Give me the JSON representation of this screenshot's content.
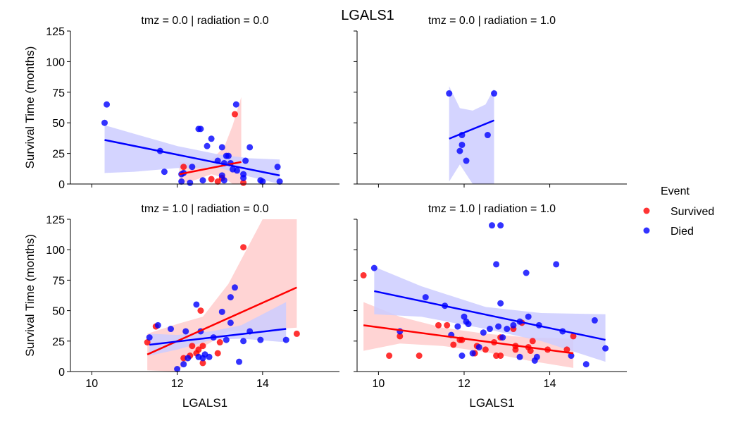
{
  "title": "LGALS1",
  "legend": {
    "title": "Event",
    "entries": [
      {
        "label": "Survived",
        "color": "#ff0000"
      },
      {
        "label": "Died",
        "color": "#0000ff"
      }
    ],
    "placement": "right"
  },
  "colors": {
    "survived": "#ff0000",
    "died": "#0000ff",
    "survived_band": "#ffcccc",
    "died_band": "#ccccff"
  },
  "chart_data": [
    {
      "type": "scatter",
      "panel_title": "tmz = 0.0 | radiation = 0.0",
      "xlabel": "",
      "ylabel": "Survival Time (months)",
      "xlim": [
        9.5,
        15.8
      ],
      "ylim": [
        0,
        125
      ],
      "xticks": [
        10,
        12,
        14
      ],
      "yticks": [
        0,
        25,
        50,
        75,
        100,
        125
      ],
      "series": [
        {
          "name": "Survived",
          "color": "#ff0000",
          "points": [
            [
              12.15,
              14
            ],
            [
              12.8,
              4
            ],
            [
              12.95,
              2
            ],
            [
              13.05,
              5
            ],
            [
              13.35,
              57
            ],
            [
              13.55,
              1
            ]
          ],
          "fit": {
            "x": [
              12.05,
              13.5
            ],
            "y": [
              8,
              18
            ]
          },
          "band": {
            "x": [
              12.05,
              12.4,
              12.8,
              13.1,
              13.3,
              13.5
            ],
            "upper": [
              18,
              17,
              20,
              30,
              48,
              71
            ],
            "lower": [
              0,
              3,
              8,
              5,
              0,
              0
            ]
          }
        },
        {
          "name": "Died",
          "color": "#0000ff",
          "points": [
            [
              10.3,
              50
            ],
            [
              10.35,
              65
            ],
            [
              11.6,
              27
            ],
            [
              11.7,
              10
            ],
            [
              12.1,
              8
            ],
            [
              12.1,
              2
            ],
            [
              12.15,
              9
            ],
            [
              12.3,
              1
            ],
            [
              12.35,
              14
            ],
            [
              12.5,
              45
            ],
            [
              12.55,
              45
            ],
            [
              12.6,
              3
            ],
            [
              12.7,
              31
            ],
            [
              12.8,
              37
            ],
            [
              12.95,
              19
            ],
            [
              13.05,
              30
            ],
            [
              13.05,
              7
            ],
            [
              13.1,
              17
            ],
            [
              13.1,
              3
            ],
            [
              13.15,
              23
            ],
            [
              13.2,
              23
            ],
            [
              13.25,
              17
            ],
            [
              13.3,
              12
            ],
            [
              13.38,
              65
            ],
            [
              13.4,
              11
            ],
            [
              13.55,
              5
            ],
            [
              13.55,
              8
            ],
            [
              13.6,
              19
            ],
            [
              13.7,
              30
            ],
            [
              13.95,
              3
            ],
            [
              14.0,
              2
            ],
            [
              14.35,
              14
            ],
            [
              14.4,
              2
            ]
          ],
          "fit": {
            "x": [
              10.3,
              14.4
            ],
            "y": [
              36,
              7
            ]
          },
          "band": {
            "x": [
              10.3,
              11.0,
              12.0,
              13.0,
              13.7,
              14.4
            ],
            "upper": [
              48,
              41,
              31,
              24,
              21,
              20
            ],
            "lower": [
              9,
              10,
              13,
              13,
              6,
              -5
            ]
          }
        }
      ]
    },
    {
      "type": "scatter",
      "panel_title": "tmz = 0.0 | radiation = 1.0",
      "xlabel": "",
      "ylabel": "",
      "xlim": [
        9.5,
        15.8
      ],
      "ylim": [
        0,
        125
      ],
      "xticks": [
        10,
        12,
        14
      ],
      "yticks": [
        0,
        25,
        50,
        75,
        100,
        125
      ],
      "series": [
        {
          "name": "Died",
          "color": "#0000ff",
          "points": [
            [
              11.65,
              74
            ],
            [
              11.9,
              27
            ],
            [
              11.95,
              40
            ],
            [
              11.95,
              32
            ],
            [
              12.05,
              19
            ],
            [
              12.55,
              40
            ],
            [
              12.7,
              74
            ]
          ],
          "fit": {
            "x": [
              11.65,
              12.7
            ],
            "y": [
              37,
              52
            ]
          },
          "band": {
            "x": [
              11.65,
              11.9,
              12.2,
              12.5,
              12.7
            ],
            "upper": [
              80,
              62,
              60,
              65,
              78
            ],
            "lower": [
              2,
              16,
              -10,
              -10,
              -10
            ]
          }
        }
      ]
    },
    {
      "type": "scatter",
      "panel_title": "tmz = 1.0 | radiation = 0.0",
      "xlabel": "LGALS1",
      "ylabel": "Survival Time (months)",
      "xlim": [
        9.5,
        15.8
      ],
      "ylim": [
        0,
        125
      ],
      "xticks": [
        10,
        12,
        14
      ],
      "yticks": [
        0,
        25,
        50,
        75,
        100,
        125
      ],
      "series": [
        {
          "name": "Survived",
          "color": "#ff0000",
          "points": [
            [
              11.3,
              24
            ],
            [
              11.5,
              37
            ],
            [
              12.15,
              11
            ],
            [
              12.3,
              13
            ],
            [
              12.35,
              21
            ],
            [
              12.45,
              15
            ],
            [
              12.5,
              18
            ],
            [
              12.55,
              50
            ],
            [
              12.6,
              7
            ],
            [
              12.6,
              21
            ],
            [
              12.95,
              15
            ],
            [
              13.0,
              24
            ],
            [
              13.55,
              102
            ],
            [
              14.8,
              31
            ]
          ],
          "fit": {
            "x": [
              11.3,
              14.8
            ],
            "y": [
              14,
              69
            ]
          },
          "band": {
            "x": [
              11.3,
              12.0,
              12.6,
              13.2,
              14.0,
              14.8
            ],
            "upper": [
              31,
              39,
              45,
              72,
              125,
              125
            ],
            "lower": [
              1,
              0,
              20,
              33,
              34,
              36
            ]
          }
        },
        {
          "name": "Died",
          "color": "#0000ff",
          "points": [
            [
              11.35,
              28
            ],
            [
              11.55,
              38
            ],
            [
              11.85,
              35
            ],
            [
              12.0,
              2
            ],
            [
              12.15,
              6
            ],
            [
              12.2,
              33
            ],
            [
              12.25,
              11
            ],
            [
              12.45,
              55
            ],
            [
              12.5,
              12
            ],
            [
              12.55,
              33
            ],
            [
              12.6,
              11
            ],
            [
              12.65,
              14
            ],
            [
              12.75,
              12
            ],
            [
              12.85,
              28
            ],
            [
              13.05,
              49
            ],
            [
              13.15,
              26
            ],
            [
              13.25,
              40
            ],
            [
              13.25,
              61
            ],
            [
              13.35,
              69
            ],
            [
              13.45,
              8
            ],
            [
              13.55,
              25
            ],
            [
              13.7,
              33
            ],
            [
              13.95,
              26
            ],
            [
              14.55,
              26
            ]
          ],
          "fit": {
            "x": [
              11.35,
              14.55
            ],
            "y": [
              22,
              35
            ]
          },
          "band": {
            "x": [
              11.35,
              12.0,
              12.8,
              13.5,
              14.55
            ],
            "upper": [
              31,
              30,
              33,
              38,
              57
            ],
            "lower": [
              13,
              18,
              26,
              27,
              24
            ]
          }
        }
      ]
    },
    {
      "type": "scatter",
      "panel_title": "tmz = 1.0 | radiation = 1.0",
      "xlabel": "LGALS1",
      "ylabel": "",
      "xlim": [
        9.5,
        15.8
      ],
      "ylim": [
        0,
        125
      ],
      "xticks": [
        10,
        12,
        14
      ],
      "yticks": [
        0,
        25,
        50,
        75,
        100,
        125
      ],
      "series": [
        {
          "name": "Survived",
          "color": "#ff0000",
          "points": [
            [
              9.65,
              79
            ],
            [
              10.25,
              13
            ],
            [
              10.5,
              29
            ],
            [
              10.95,
              13
            ],
            [
              11.4,
              38
            ],
            [
              11.6,
              38
            ],
            [
              11.75,
              22
            ],
            [
              11.9,
              26
            ],
            [
              11.95,
              26
            ],
            [
              12.25,
              15
            ],
            [
              12.3,
              21
            ],
            [
              12.5,
              18
            ],
            [
              12.7,
              24
            ],
            [
              12.75,
              13
            ],
            [
              12.85,
              28
            ],
            [
              12.85,
              13
            ],
            [
              13.15,
              35
            ],
            [
              13.2,
              21
            ],
            [
              13.2,
              18
            ],
            [
              13.35,
              40
            ],
            [
              13.5,
              20
            ],
            [
              13.55,
              17
            ],
            [
              13.6,
              25
            ],
            [
              13.95,
              18
            ],
            [
              14.4,
              18
            ],
            [
              14.55,
              29
            ]
          ],
          "fit": {
            "x": [
              9.65,
              14.55
            ],
            "y": [
              38,
              15
            ]
          },
          "band": {
            "x": [
              9.65,
              10.5,
              11.5,
              12.5,
              13.5,
              14.55
            ],
            "upper": [
              57,
              45,
              36,
              31,
              28,
              27
            ],
            "lower": [
              17,
              23,
              21,
              16,
              9,
              3
            ]
          }
        },
        {
          "name": "Died",
          "color": "#0000ff",
          "points": [
            [
              9.9,
              85
            ],
            [
              10.5,
              33
            ],
            [
              11.1,
              61
            ],
            [
              11.55,
              54
            ],
            [
              11.7,
              30
            ],
            [
              11.85,
              37
            ],
            [
              11.95,
              13
            ],
            [
              12.0,
              45
            ],
            [
              12.05,
              41
            ],
            [
              12.1,
              39
            ],
            [
              12.2,
              15
            ],
            [
              12.35,
              20
            ],
            [
              12.45,
              32
            ],
            [
              12.6,
              35
            ],
            [
              12.65,
              120
            ],
            [
              12.75,
              88
            ],
            [
              12.8,
              37
            ],
            [
              12.85,
              120
            ],
            [
              12.85,
              56
            ],
            [
              12.9,
              28
            ],
            [
              13.0,
              35
            ],
            [
              13.15,
              38
            ],
            [
              13.3,
              41
            ],
            [
              13.3,
              12
            ],
            [
              13.45,
              81
            ],
            [
              13.5,
              45
            ],
            [
              13.65,
              9
            ],
            [
              13.7,
              12
            ],
            [
              13.75,
              38
            ],
            [
              14.15,
              88
            ],
            [
              14.3,
              33
            ],
            [
              14.5,
              13
            ],
            [
              14.85,
              6
            ],
            [
              15.05,
              42
            ],
            [
              15.3,
              19
            ]
          ],
          "fit": {
            "x": [
              9.9,
              15.3
            ],
            "y": [
              66,
              26
            ]
          },
          "band": {
            "x": [
              9.9,
              11.0,
              12.5,
              13.8,
              15.3
            ],
            "upper": [
              86,
              70,
              53,
              48,
              47
            ],
            "lower": [
              47,
              45,
              35,
              25,
              8
            ]
          }
        }
      ]
    }
  ]
}
